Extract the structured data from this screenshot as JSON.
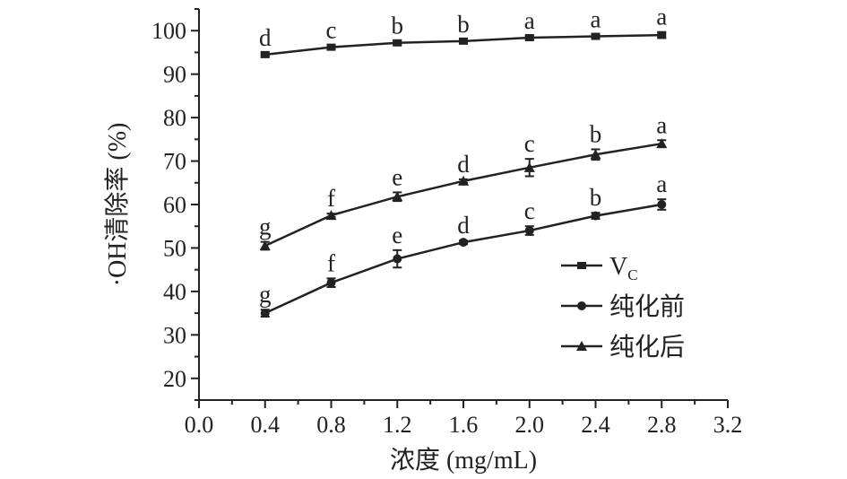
{
  "chart_data": {
    "type": "line",
    "xlabel": "浓度 (mg/mL)",
    "ylabel": "·OH清除率 (%)",
    "xlim": [
      0.0,
      3.2
    ],
    "ylim": [
      15,
      105
    ],
    "xticks": [
      0.0,
      0.4,
      0.8,
      1.2,
      1.6,
      2.0,
      2.4,
      2.8,
      3.2
    ],
    "xtick_labels": [
      "0.0",
      "0.4",
      "0.8",
      "1.2",
      "1.6",
      "2.0",
      "2.4",
      "2.8",
      "3.2"
    ],
    "yticks": [
      20,
      30,
      40,
      50,
      60,
      70,
      80,
      90,
      100
    ],
    "ytick_labels": [
      "20",
      "30",
      "40",
      "50",
      "60",
      "70",
      "80",
      "90",
      "100"
    ],
    "grid": false,
    "legend_position": "right",
    "x": [
      0.4,
      0.8,
      1.2,
      1.6,
      2.0,
      2.4,
      2.8
    ],
    "series": [
      {
        "name": "Vc",
        "name_main": "V",
        "name_sub": "C",
        "marker": "square",
        "values": [
          94.5,
          96.2,
          97.2,
          97.6,
          98.4,
          98.7,
          99.0
        ],
        "errors": [
          0.4,
          0.4,
          0.5,
          0.4,
          0.4,
          0.4,
          0.7
        ],
        "labels": [
          "d",
          "c",
          "b",
          "b",
          "a",
          "a",
          "a"
        ]
      },
      {
        "name": "纯化前",
        "marker": "circle",
        "values": [
          35.0,
          42.0,
          47.5,
          51.3,
          54.0,
          57.4,
          60.0
        ],
        "errors": [
          0.8,
          1.0,
          2.0,
          0.4,
          1.0,
          0.7,
          1.2
        ],
        "labels": [
          "g",
          "f",
          "e",
          "d",
          "c",
          "b",
          "a"
        ]
      },
      {
        "name": "纯化后",
        "marker": "triangle",
        "values": [
          50.5,
          57.5,
          61.8,
          65.4,
          68.5,
          71.5,
          74.0
        ],
        "errors": [
          0.9,
          0.4,
          1.0,
          0.4,
          2.0,
          1.2,
          0.8
        ],
        "labels": [
          "g",
          "f",
          "e",
          "d",
          "c",
          "b",
          "a"
        ]
      }
    ]
  }
}
